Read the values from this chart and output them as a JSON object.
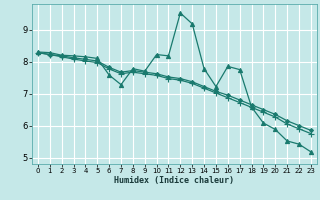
{
  "title": "",
  "xlabel": "Humidex (Indice chaleur)",
  "ylabel": "",
  "background_color": "#c5e8e8",
  "grid_color": "#ffffff",
  "line_color": "#1a7a6e",
  "xlim": [
    -0.5,
    23.5
  ],
  "ylim": [
    4.8,
    9.8
  ],
  "xticks": [
    0,
    1,
    2,
    3,
    4,
    5,
    6,
    7,
    8,
    9,
    10,
    11,
    12,
    13,
    14,
    15,
    16,
    17,
    18,
    19,
    20,
    21,
    22,
    23
  ],
  "yticks": [
    5,
    6,
    7,
    8,
    9
  ],
  "series": [
    {
      "x": [
        0,
        1,
        2,
        3,
        4,
        5,
        6,
        7,
        8,
        9,
        10,
        11,
        12,
        13,
        14,
        15,
        16,
        17,
        18,
        19,
        20,
        21,
        22,
        23
      ],
      "y": [
        8.3,
        8.28,
        8.2,
        8.18,
        8.15,
        8.1,
        7.58,
        7.28,
        7.78,
        7.7,
        8.22,
        8.18,
        9.52,
        9.18,
        7.78,
        7.22,
        7.85,
        7.75,
        6.58,
        6.08,
        5.88,
        5.52,
        5.42,
        5.18
      ],
      "marker": "^",
      "markersize": 3,
      "lw": 0.9
    },
    {
      "x": [
        0,
        1,
        2,
        3,
        4,
        5,
        6,
        7,
        8,
        9,
        10,
        11,
        12,
        13,
        14,
        15,
        16,
        17,
        18,
        19,
        20,
        21,
        22,
        23
      ],
      "y": [
        8.28,
        8.22,
        8.18,
        8.12,
        8.07,
        8.02,
        7.82,
        7.67,
        7.72,
        7.67,
        7.62,
        7.52,
        7.47,
        7.37,
        7.22,
        7.07,
        6.95,
        6.8,
        6.65,
        6.5,
        6.35,
        6.15,
        6.0,
        5.85
      ],
      "marker": "D",
      "markersize": 2,
      "lw": 0.9
    },
    {
      "x": [
        0,
        1,
        2,
        3,
        4,
        5,
        6,
        7,
        8,
        9,
        10,
        11,
        12,
        13,
        14,
        15,
        16,
        17,
        18,
        19,
        20,
        21,
        22,
        23
      ],
      "y": [
        8.28,
        8.22,
        8.15,
        8.08,
        8.02,
        7.97,
        7.77,
        7.62,
        7.67,
        7.62,
        7.57,
        7.47,
        7.42,
        7.32,
        7.17,
        7.02,
        6.87,
        6.72,
        6.57,
        6.42,
        6.27,
        6.05,
        5.9,
        5.75
      ],
      "marker": "+",
      "markersize": 4,
      "lw": 0.9
    }
  ]
}
